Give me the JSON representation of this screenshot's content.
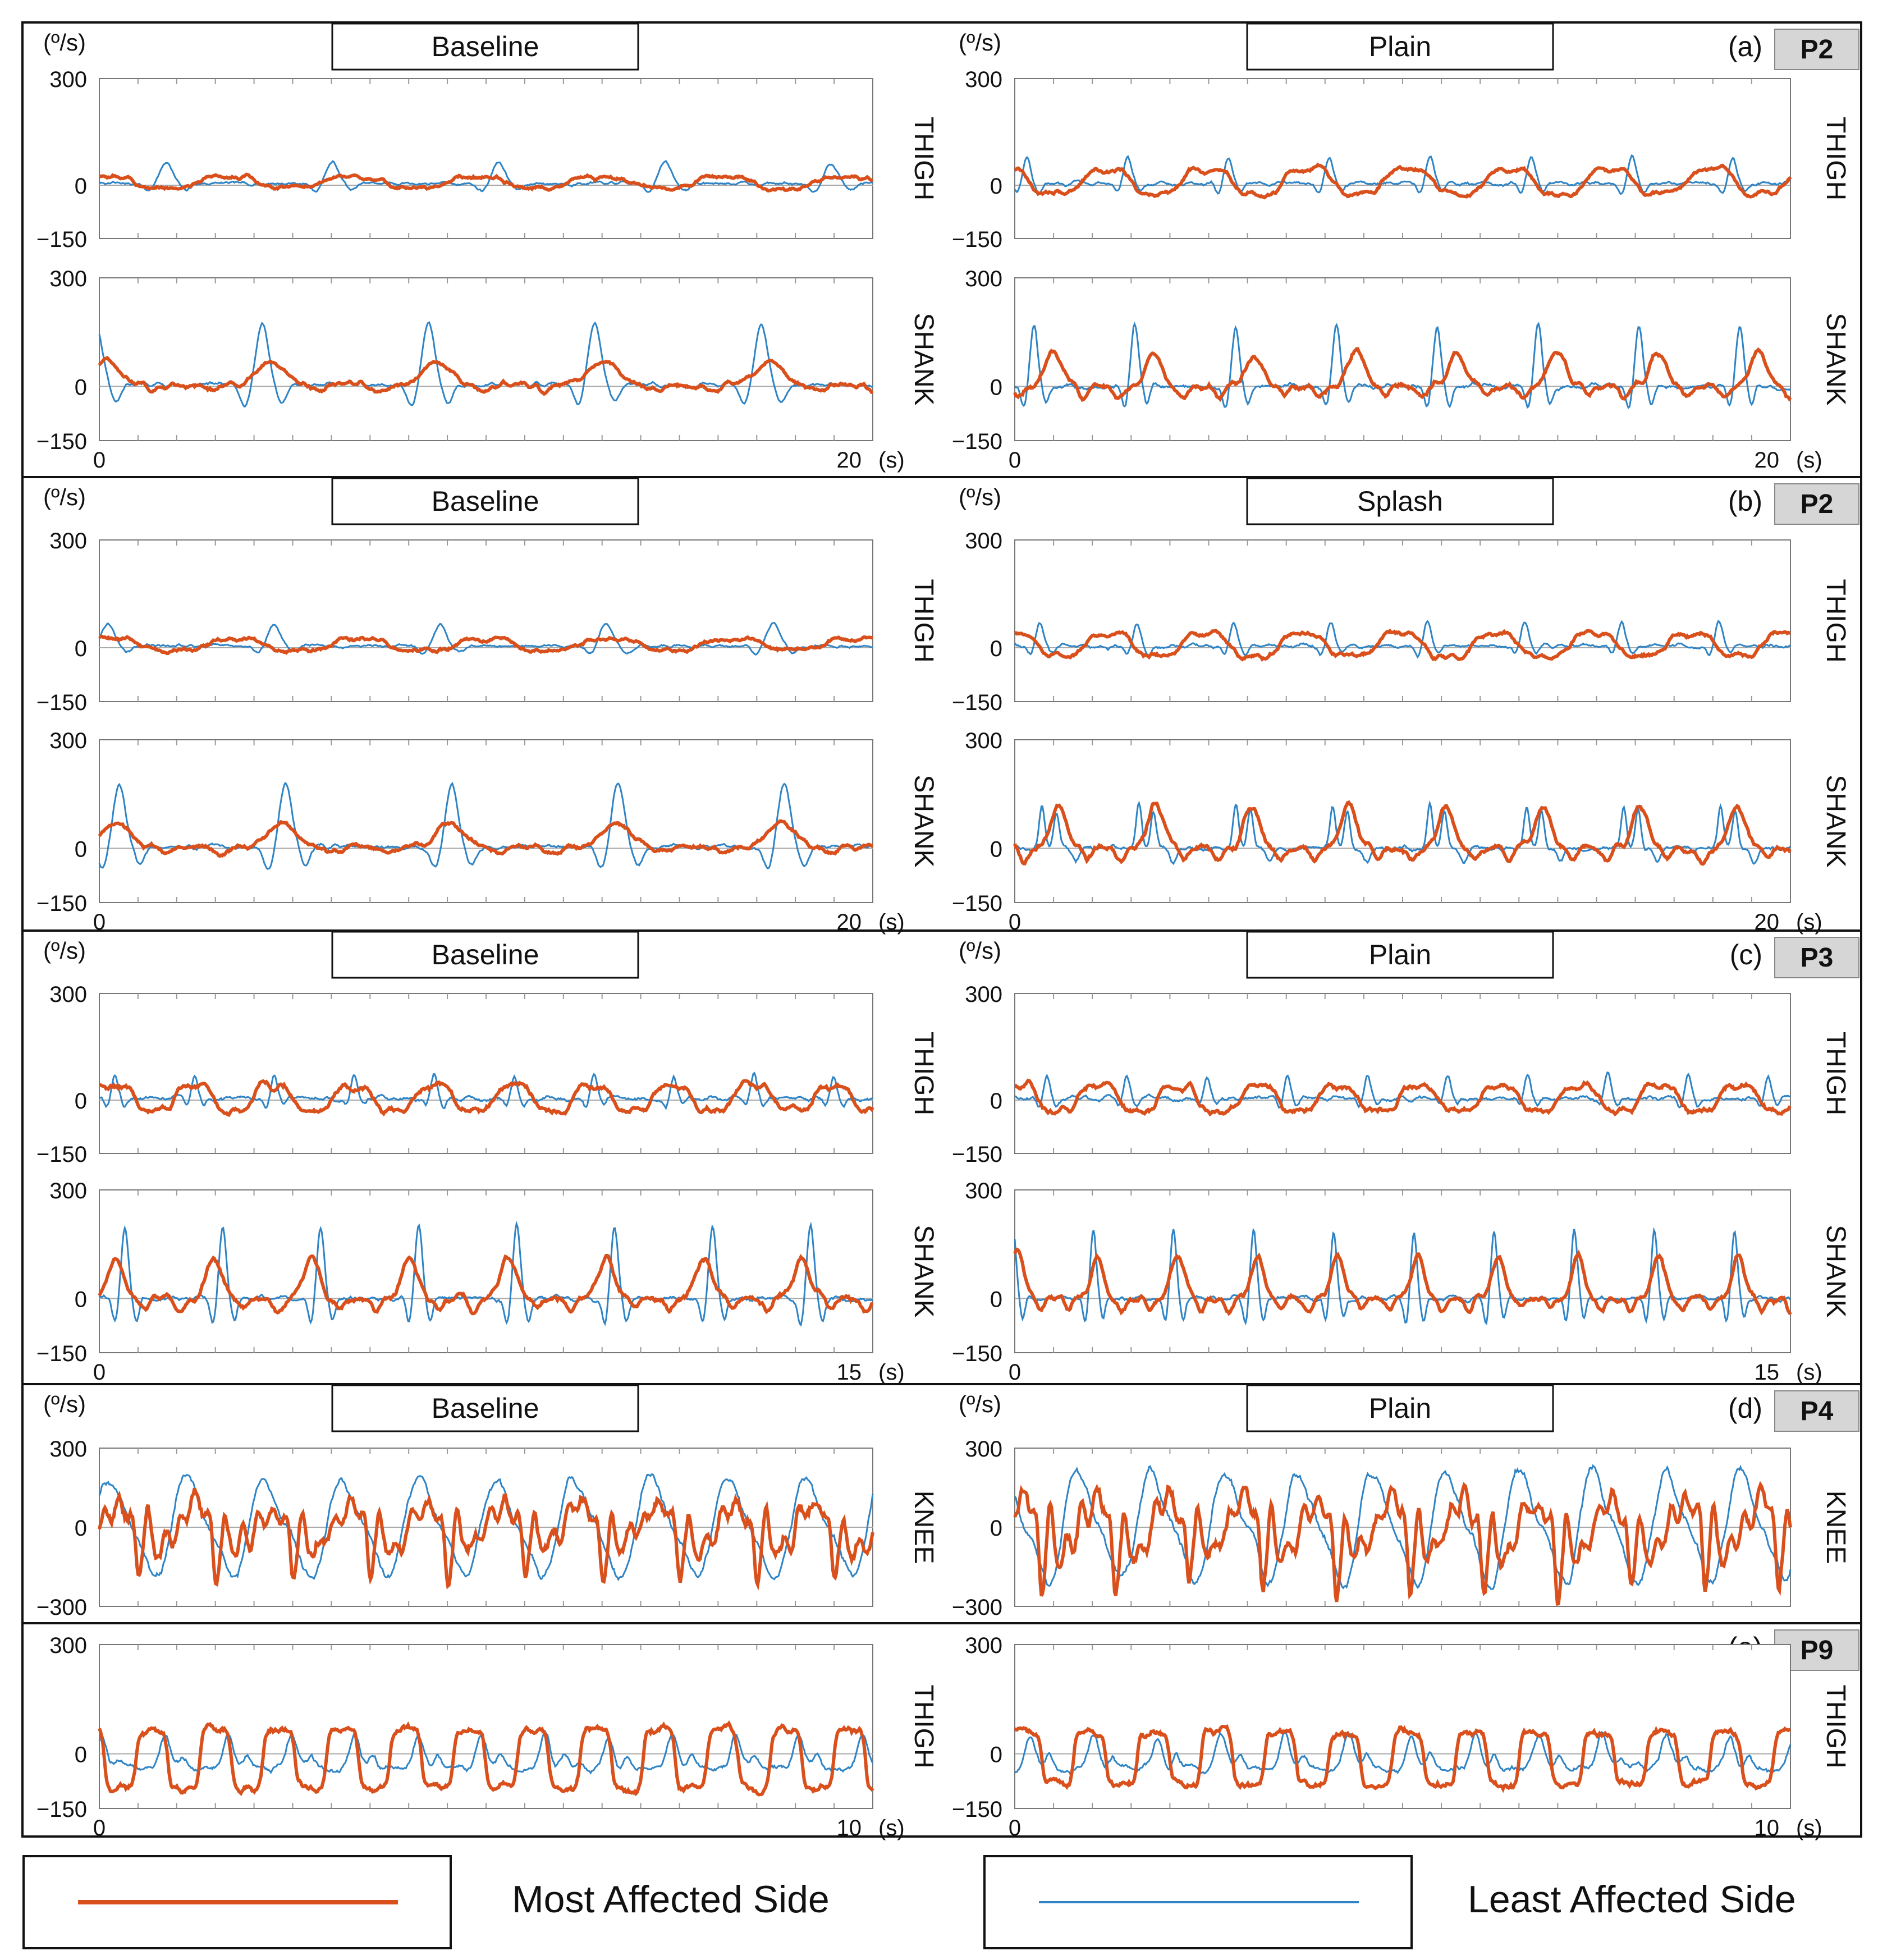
{
  "figure": {
    "unit_label": "(º/s)",
    "time_unit": "(s)"
  },
  "legend": {
    "most_affected": {
      "label": "Most Affected Side",
      "color": "#d9501c"
    },
    "least_affected": {
      "label": "Least Affected Side",
      "color": "#2f84c5"
    }
  },
  "chart_data": [
    {
      "type": "line",
      "panel": "(a)",
      "participant": "P2",
      "duration_s": 20,
      "xlabel_end": "20",
      "conditions": [
        {
          "title": "Baseline",
          "segments": [
            {
              "label": "THIGH",
              "ylim": [
                -150,
                300
              ],
              "yticks": [
                "300",
                "0",
                "−150"
              ],
              "most": {
                "baseline": 8,
                "amp": 20,
                "period": 3.2,
                "shape": "slow",
                "noise": 5
              },
              "least": {
                "baseline": 5,
                "amp": 60,
                "period": 4.3,
                "shape": "spike",
                "noise": 4
              }
            },
            {
              "label": "SHANK",
              "ylim": [
                -150,
                300
              ],
              "yticks": [
                "300",
                "0",
                "−150"
              ],
              "most": {
                "baseline": 5,
                "amp": 65,
                "period": 4.3,
                "shape": "bump",
                "noise": 6
              },
              "least": {
                "baseline": 5,
                "amp": 170,
                "period": 4.3,
                "shape": "spike",
                "noise": 5
              }
            }
          ]
        },
        {
          "title": "Plain",
          "segments": [
            {
              "label": "THIGH",
              "ylim": [
                -150,
                300
              ],
              "yticks": [
                "300",
                "0",
                "−150"
              ],
              "most": {
                "baseline": 10,
                "amp": 45,
                "period": 2.6,
                "shape": "slow",
                "noise": 6
              },
              "least": {
                "baseline": 5,
                "amp": 75,
                "period": 2.6,
                "shape": "spike",
                "noise": 5
              }
            },
            {
              "label": "SHANK",
              "ylim": [
                -150,
                300
              ],
              "yticks": [
                "300",
                "0",
                "−150"
              ],
              "most": {
                "baseline": 0,
                "amp": 95,
                "period": 2.6,
                "shape": "bump",
                "noise": 8
              },
              "least": {
                "baseline": 0,
                "amp": 170,
                "period": 2.6,
                "shape": "spike",
                "noise": 6
              }
            }
          ]
        }
      ]
    },
    {
      "type": "line",
      "panel": "(b)",
      "participant": "P2",
      "duration_s": 20,
      "xlabel_end": "20",
      "conditions": [
        {
          "title": "Baseline",
          "segments": [
            {
              "label": "THIGH",
              "ylim": [
                -150,
                300
              ],
              "yticks": [
                "300",
                "0",
                "−150"
              ],
              "most": {
                "baseline": 8,
                "amp": 20,
                "period": 3.2,
                "shape": "slow",
                "noise": 5
              },
              "least": {
                "baseline": 5,
                "amp": 60,
                "period": 4.3,
                "shape": "spike",
                "noise": 4
              }
            },
            {
              "label": "SHANK",
              "ylim": [
                -150,
                300
              ],
              "yticks": [
                "300",
                "0",
                "−150"
              ],
              "most": {
                "baseline": 5,
                "amp": 65,
                "period": 4.3,
                "shape": "bump",
                "noise": 6
              },
              "least": {
                "baseline": 5,
                "amp": 170,
                "period": 4.3,
                "shape": "spike",
                "noise": 5
              }
            }
          ]
        },
        {
          "title": "Splash",
          "segments": [
            {
              "label": "THIGH",
              "ylim": [
                -150,
                300
              ],
              "yticks": [
                "300",
                "0",
                "−150"
              ],
              "most": {
                "baseline": 8,
                "amp": 40,
                "period": 2.5,
                "shape": "slow",
                "noise": 6
              },
              "least": {
                "baseline": 5,
                "amp": 65,
                "period": 2.5,
                "shape": "spike",
                "noise": 5
              }
            },
            {
              "label": "SHANK",
              "ylim": [
                -150,
                300
              ],
              "yticks": [
                "300",
                "0",
                "−150"
              ],
              "most": {
                "baseline": 0,
                "amp": 120,
                "period": 2.5,
                "shape": "bump",
                "noise": 8
              },
              "least": {
                "baseline": 0,
                "amp": 120,
                "period": 2.5,
                "shape": "double",
                "noise": 6
              }
            }
          ]
        }
      ]
    },
    {
      "type": "line",
      "panel": "(c)",
      "participant": "P3",
      "duration_s": 15,
      "xlabel_end": "15",
      "conditions": [
        {
          "title": "Baseline",
          "segments": [
            {
              "label": "THIGH",
              "ylim": [
                -150,
                300
              ],
              "yticks": [
                "300",
                "0",
                "−150"
              ],
              "most": {
                "baseline": 5,
                "amp": 45,
                "period": 1.55,
                "shape": "slow",
                "noise": 8
              },
              "least": {
                "baseline": 5,
                "amp": 65,
                "period": 1.55,
                "shape": "spike",
                "noise": 6
              }
            },
            {
              "label": "SHANK",
              "ylim": [
                -150,
                300
              ],
              "yticks": [
                "300",
                "0",
                "−150"
              ],
              "most": {
                "baseline": 0,
                "amp": 110,
                "period": 1.9,
                "shape": "bump",
                "noise": 8
              },
              "least": {
                "baseline": 0,
                "amp": 200,
                "period": 1.9,
                "shape": "spike",
                "noise": 6
              }
            }
          ]
        },
        {
          "title": "Plain",
          "segments": [
            {
              "label": "THIGH",
              "ylim": [
                -150,
                300
              ],
              "yticks": [
                "300",
                "0",
                "−150"
              ],
              "most": {
                "baseline": 5,
                "amp": 45,
                "period": 1.55,
                "shape": "slow",
                "noise": 8
              },
              "least": {
                "baseline": 5,
                "amp": 65,
                "period": 1.55,
                "shape": "spike",
                "noise": 6
              }
            },
            {
              "label": "SHANK",
              "ylim": [
                -150,
                300
              ],
              "yticks": [
                "300",
                "0",
                "−150"
              ],
              "most": {
                "baseline": 0,
                "amp": 120,
                "period": 1.55,
                "shape": "bump",
                "noise": 8
              },
              "least": {
                "baseline": 0,
                "amp": 190,
                "period": 1.55,
                "shape": "spike",
                "noise": 6
              }
            }
          ]
        }
      ]
    },
    {
      "type": "line",
      "panel": "(d)",
      "participant": "P4",
      "duration_s": 10,
      "xlabel_end": "",
      "conditions": [
        {
          "title": "Baseline",
          "segments": [
            {
              "label": "KNEE",
              "ylim": [
                -300,
                300
              ],
              "yticks": [
                "300",
                "0",
                "−300"
              ],
              "most": {
                "baseline": 0,
                "amp": 180,
                "period": 1.0,
                "shape": "knee",
                "noise": 25
              },
              "least": {
                "baseline": 0,
                "amp": 170,
                "period": 1.0,
                "shape": "sine",
                "noise": 15
              }
            }
          ]
        },
        {
          "title": "Plain",
          "segments": [
            {
              "label": "KNEE",
              "ylim": [
                -300,
                300
              ],
              "yticks": [
                "300",
                "0",
                "−300"
              ],
              "most": {
                "baseline": 0,
                "amp": 220,
                "period": 0.95,
                "shape": "knee",
                "noise": 30
              },
              "least": {
                "baseline": 0,
                "amp": 190,
                "period": 0.95,
                "shape": "sine",
                "noise": 18
              }
            }
          ]
        }
      ]
    },
    {
      "type": "line",
      "panel": "(e)",
      "participant": "P9",
      "duration_s": 10,
      "xlabel_end": "10",
      "conditions": [
        {
          "title": "",
          "segments": [
            {
              "label": "THIGH",
              "ylim": [
                -150,
                300
              ],
              "yticks": [
                "300",
                "0",
                "−150"
              ],
              "most": {
                "baseline": 0,
                "amp": 95,
                "period": 0.82,
                "shape": "square",
                "noise": 10
              },
              "least": {
                "baseline": 0,
                "amp": 110,
                "period": 0.82,
                "shape": "peakshift",
                "noise": 8
              }
            }
          ]
        },
        {
          "title": "",
          "segments": [
            {
              "label": "THIGH",
              "ylim": [
                -150,
                300
              ],
              "yticks": [
                "300",
                "0",
                "−150"
              ],
              "most": {
                "baseline": 0,
                "amp": 85,
                "period": 0.82,
                "shape": "square",
                "noise": 10
              },
              "least": {
                "baseline": 0,
                "amp": 115,
                "period": 0.82,
                "shape": "peakshift",
                "noise": 8
              }
            }
          ]
        }
      ]
    }
  ]
}
